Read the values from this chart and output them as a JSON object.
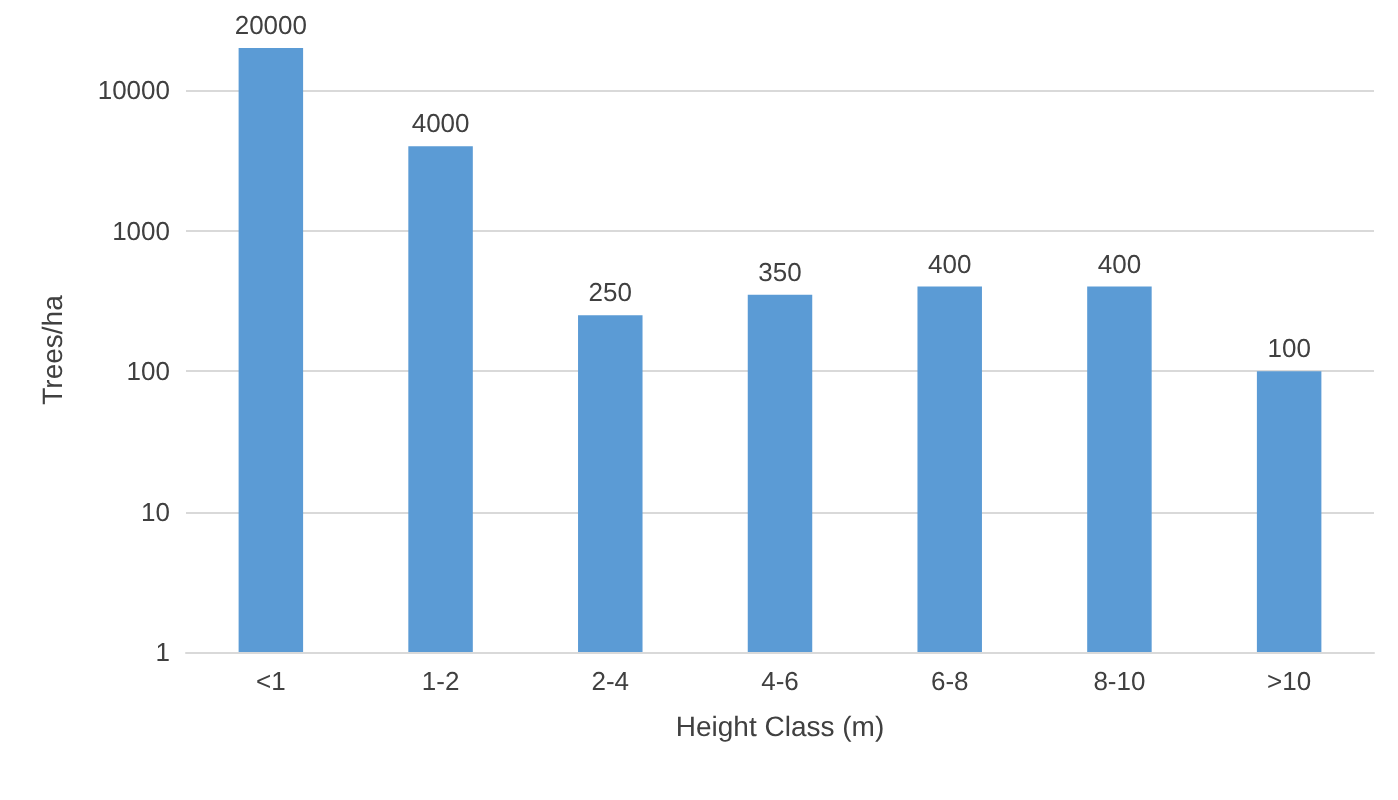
{
  "chart_data": {
    "type": "bar",
    "xlabel": "Height Class (m)",
    "ylabel": "Trees/ha",
    "categories": [
      "<1",
      "1-2",
      "2-4",
      "4-6",
      "6-8",
      "8-10",
      ">10"
    ],
    "values": [
      20000,
      4000,
      250,
      350,
      400,
      400,
      100
    ],
    "color": "#5b9bd5",
    "log": "y",
    "ylim": [
      1,
      20000
    ],
    "yticks": [
      1,
      10,
      100,
      1000,
      10000
    ],
    "grid": "y",
    "data_labels": true
  }
}
